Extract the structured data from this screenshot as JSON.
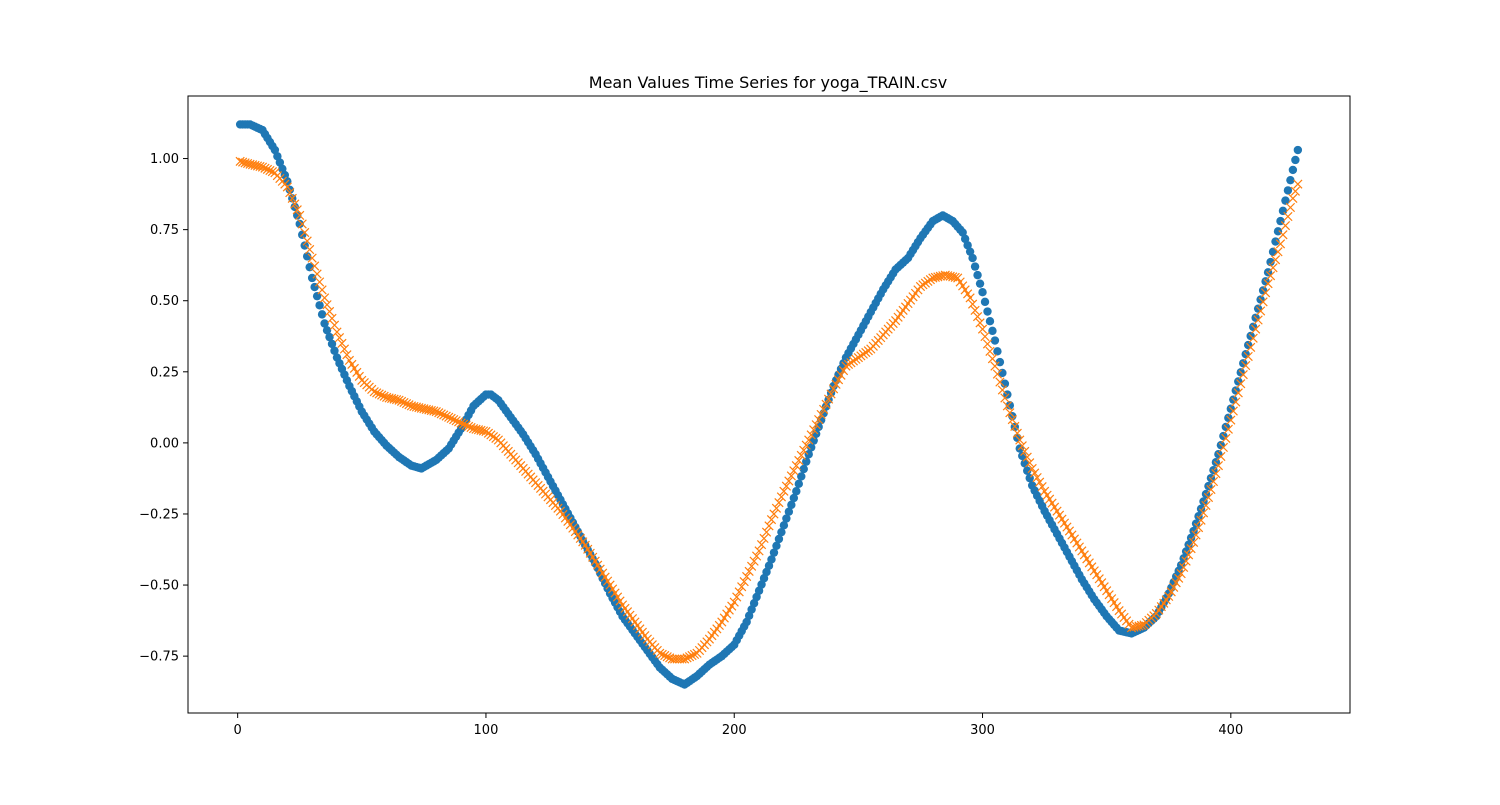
{
  "chart_data": {
    "type": "scatter",
    "title": "Mean Values Time Series for yoga_TRAIN.csv",
    "xlabel": "",
    "ylabel": "",
    "xlim": [
      -20,
      448
    ],
    "ylim": [
      -0.95,
      1.22
    ],
    "xticks": [
      0,
      100,
      200,
      300,
      400
    ],
    "xtick_labels": [
      "0",
      "100",
      "200",
      "300",
      "400"
    ],
    "yticks": [
      -0.75,
      -0.5,
      -0.25,
      0.0,
      0.25,
      0.5,
      0.75,
      1.0
    ],
    "ytick_labels": [
      "−0.75",
      "−0.50",
      "−0.25",
      "0.00",
      "0.25",
      "0.50",
      "0.75",
      "1.00"
    ],
    "grid": false,
    "legend": "none",
    "n_points": 427,
    "series": [
      {
        "marker": "circle",
        "color": "#1f77b4",
        "keypoints": [
          [
            1,
            1.12
          ],
          [
            5,
            1.12
          ],
          [
            10,
            1.1
          ],
          [
            15,
            1.03
          ],
          [
            20,
            0.92
          ],
          [
            25,
            0.77
          ],
          [
            30,
            0.58
          ],
          [
            35,
            0.42
          ],
          [
            40,
            0.3
          ],
          [
            45,
            0.2
          ],
          [
            50,
            0.11
          ],
          [
            55,
            0.04
          ],
          [
            60,
            -0.01
          ],
          [
            65,
            -0.05
          ],
          [
            70,
            -0.08
          ],
          [
            74,
            -0.09
          ],
          [
            80,
            -0.06
          ],
          [
            85,
            -0.02
          ],
          [
            90,
            0.05
          ],
          [
            95,
            0.13
          ],
          [
            100,
            0.17
          ],
          [
            102,
            0.17
          ],
          [
            105,
            0.15
          ],
          [
            110,
            0.09
          ],
          [
            115,
            0.03
          ],
          [
            120,
            -0.04
          ],
          [
            125,
            -0.12
          ],
          [
            130,
            -0.2
          ],
          [
            135,
            -0.28
          ],
          [
            140,
            -0.36
          ],
          [
            145,
            -0.44
          ],
          [
            150,
            -0.53
          ],
          [
            155,
            -0.61
          ],
          [
            160,
            -0.67
          ],
          [
            165,
            -0.73
          ],
          [
            170,
            -0.79
          ],
          [
            175,
            -0.83
          ],
          [
            180,
            -0.85
          ],
          [
            185,
            -0.82
          ],
          [
            190,
            -0.78
          ],
          [
            195,
            -0.75
          ],
          [
            200,
            -0.71
          ],
          [
            205,
            -0.63
          ],
          [
            210,
            -0.52
          ],
          [
            215,
            -0.41
          ],
          [
            220,
            -0.29
          ],
          [
            225,
            -0.17
          ],
          [
            230,
            -0.04
          ],
          [
            235,
            0.08
          ],
          [
            240,
            0.2
          ],
          [
            245,
            0.3
          ],
          [
            250,
            0.38
          ],
          [
            255,
            0.46
          ],
          [
            260,
            0.54
          ],
          [
            265,
            0.61
          ],
          [
            270,
            0.65
          ],
          [
            275,
            0.72
          ],
          [
            280,
            0.78
          ],
          [
            284,
            0.8
          ],
          [
            288,
            0.78
          ],
          [
            292,
            0.74
          ],
          [
            296,
            0.65
          ],
          [
            300,
            0.53
          ],
          [
            305,
            0.36
          ],
          [
            310,
            0.17
          ],
          [
            315,
            -0.02
          ],
          [
            320,
            -0.15
          ],
          [
            325,
            -0.24
          ],
          [
            330,
            -0.32
          ],
          [
            335,
            -0.4
          ],
          [
            340,
            -0.48
          ],
          [
            345,
            -0.55
          ],
          [
            350,
            -0.61
          ],
          [
            355,
            -0.66
          ],
          [
            360,
            -0.67
          ],
          [
            365,
            -0.65
          ],
          [
            370,
            -0.61
          ],
          [
            375,
            -0.53
          ],
          [
            380,
            -0.43
          ],
          [
            385,
            -0.31
          ],
          [
            390,
            -0.18
          ],
          [
            395,
            -0.04
          ],
          [
            400,
            0.12
          ],
          [
            405,
            0.28
          ],
          [
            410,
            0.44
          ],
          [
            415,
            0.6
          ],
          [
            420,
            0.78
          ],
          [
            425,
            0.96
          ],
          [
            427,
            1.03
          ]
        ]
      },
      {
        "marker": "x",
        "color": "#ff7f0e",
        "keypoints": [
          [
            1,
            0.99
          ],
          [
            5,
            0.98
          ],
          [
            10,
            0.97
          ],
          [
            15,
            0.95
          ],
          [
            20,
            0.9
          ],
          [
            25,
            0.8
          ],
          [
            30,
            0.65
          ],
          [
            35,
            0.51
          ],
          [
            40,
            0.39
          ],
          [
            45,
            0.29
          ],
          [
            50,
            0.22
          ],
          [
            55,
            0.18
          ],
          [
            60,
            0.16
          ],
          [
            65,
            0.15
          ],
          [
            70,
            0.13
          ],
          [
            75,
            0.12
          ],
          [
            80,
            0.11
          ],
          [
            85,
            0.09
          ],
          [
            90,
            0.07
          ],
          [
            95,
            0.05
          ],
          [
            100,
            0.04
          ],
          [
            105,
            0.01
          ],
          [
            110,
            -0.04
          ],
          [
            115,
            -0.09
          ],
          [
            120,
            -0.14
          ],
          [
            125,
            -0.19
          ],
          [
            130,
            -0.24
          ],
          [
            135,
            -0.3
          ],
          [
            140,
            -0.36
          ],
          [
            145,
            -0.43
          ],
          [
            150,
            -0.5
          ],
          [
            155,
            -0.57
          ],
          [
            160,
            -0.63
          ],
          [
            165,
            -0.69
          ],
          [
            170,
            -0.74
          ],
          [
            175,
            -0.76
          ],
          [
            180,
            -0.76
          ],
          [
            185,
            -0.74
          ],
          [
            190,
            -0.69
          ],
          [
            195,
            -0.63
          ],
          [
            200,
            -0.56
          ],
          [
            205,
            -0.47
          ],
          [
            210,
            -0.38
          ],
          [
            215,
            -0.27
          ],
          [
            220,
            -0.17
          ],
          [
            225,
            -0.08
          ],
          [
            230,
            0.01
          ],
          [
            235,
            0.1
          ],
          [
            240,
            0.19
          ],
          [
            245,
            0.27
          ],
          [
            250,
            0.3
          ],
          [
            255,
            0.33
          ],
          [
            260,
            0.38
          ],
          [
            265,
            0.43
          ],
          [
            270,
            0.49
          ],
          [
            275,
            0.55
          ],
          [
            280,
            0.58
          ],
          [
            285,
            0.59
          ],
          [
            290,
            0.58
          ],
          [
            295,
            0.51
          ],
          [
            300,
            0.4
          ],
          [
            305,
            0.27
          ],
          [
            310,
            0.13
          ],
          [
            315,
            0.01
          ],
          [
            320,
            -0.09
          ],
          [
            325,
            -0.17
          ],
          [
            330,
            -0.24
          ],
          [
            335,
            -0.31
          ],
          [
            340,
            -0.38
          ],
          [
            345,
            -0.45
          ],
          [
            350,
            -0.52
          ],
          [
            355,
            -0.59
          ],
          [
            360,
            -0.65
          ],
          [
            365,
            -0.64
          ],
          [
            370,
            -0.6
          ],
          [
            375,
            -0.54
          ],
          [
            380,
            -0.46
          ],
          [
            385,
            -0.35
          ],
          [
            390,
            -0.22
          ],
          [
            395,
            -0.08
          ],
          [
            400,
            0.08
          ],
          [
            405,
            0.24
          ],
          [
            410,
            0.4
          ],
          [
            415,
            0.56
          ],
          [
            420,
            0.7
          ],
          [
            425,
            0.86
          ],
          [
            427,
            0.91
          ]
        ]
      }
    ]
  }
}
